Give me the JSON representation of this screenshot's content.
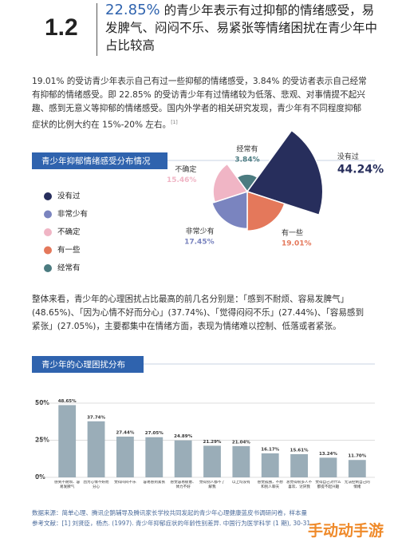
{
  "section_number": "1.2",
  "headline": {
    "highlight": "22.85%",
    "text": "的青少年表示有过抑郁的情绪感受，易发脾气、闷闷不乐、易紧张等情绪困扰在青少年中占比较高"
  },
  "paragraph1": {
    "text": "19.01% 的受访青少年表示自己有过一些抑郁的情绪感受，3.84% 的受访者表示自己经常有抑郁的情绪感受。即 22.85% 的受访青少年有过情绪较为低落、悲观、对事情提不起兴趣、感到无意义等抑郁的情绪感受。国内外学者的相关研究发现，青少年有不同程度抑郁症状的比例大约在 15%-20% 左右。",
    "note": "[1]"
  },
  "chart_data": [
    {
      "type": "pie",
      "title": "青少年抑郁情绪感受分布情况",
      "categories": [
        "没有过",
        "非常少有",
        "不确定",
        "有一些",
        "经常有"
      ],
      "values": [
        44.24,
        17.45,
        15.46,
        19.01,
        3.84
      ],
      "value_labels": [
        "44.24%",
        "17.45%",
        "15.46%",
        "19.01%",
        "3.84%"
      ],
      "colors": [
        "#272e5c",
        "#7a84bf",
        "#f0b5c5",
        "#e4785b",
        "#4b7b80"
      ]
    },
    {
      "type": "bar",
      "title": "青少年的心理困扰分布",
      "categories": [
        "感到不耐烦、容易发脾气",
        "因为心情不好而分心",
        "觉得闷闷不乐",
        "容易感到紧张",
        "感觉容易疲惫、体力不好",
        "觉得别人都不了解我",
        "以上均没有",
        "感觉孤独，不想和别人聊天",
        "总觉得很多人不喜欢、讨厌我",
        "觉得自己对什么都提不起兴趣",
        "无法控制自己的情绪"
      ],
      "values": [
        48.65,
        37.74,
        27.44,
        27.05,
        24.89,
        21.29,
        21.04,
        16.17,
        15.61,
        13.24,
        11.7
      ],
      "value_labels": [
        "48.65%",
        "37.74%",
        "27.44%",
        "27.05%",
        "24.89%",
        "21.29%",
        "21.04%",
        "16.17%",
        "15.61%",
        "13.24%",
        "11.70%"
      ],
      "color": "#9aadb8",
      "ylim": [
        0,
        50
      ],
      "yticks": [
        {
          "value": 0,
          "label": "0%"
        },
        {
          "value": 25,
          "label": "25%"
        },
        {
          "value": 50,
          "label": "50%"
        }
      ],
      "grid": true
    }
  ],
  "paragraph2": "整体来看，青少年的心理困扰占比最高的前几名分别是：「感到不耐烦、容易发脾气」(48.65%)、「因为心情不好而分心」(37.74%)、「觉得闷闷不乐」(27.44%)、「容易感到紧张」(27.05%)，主要都集中在情绪方面，表现为情绪难以控制、低落或者紧张。",
  "source": "数据来源：简单心理、腾讯企鹅辅导及腾讯家长学校共同发起的青少年心理健康蓝皮书调研问卷，样本量",
  "reference": "参考文献：[1] 刘贤臣，杨杰. (1997). 青少年抑郁症状的年龄性别差异. 中国行为医学科学 (1 期), 30-31.",
  "watermark": "手动动手游"
}
